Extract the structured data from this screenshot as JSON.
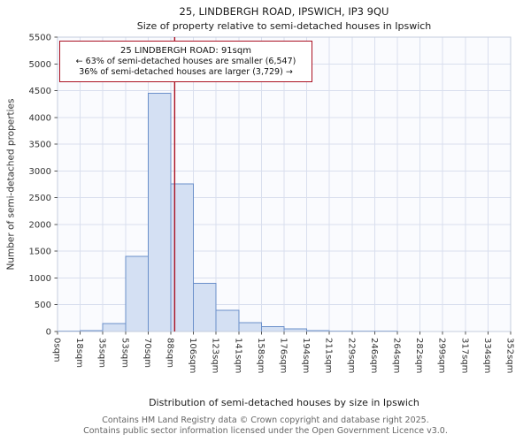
{
  "annotation": {
    "line1": "25 LINDBERGH ROAD: 91sqm",
    "line2": "← 63% of semi-detached houses are smaller (6,547)",
    "line3": "36% of semi-detached houses are larger (3,729) →"
  },
  "footer": {
    "line1": "Contains HM Land Registry data © Crown copyright and database right 2025.",
    "line2": "Contains public sector information licensed under the Open Government Licence v3.0."
  },
  "chart_data": {
    "type": "bar",
    "title": "25, LINDBERGH ROAD, IPSWICH, IP3 9QU",
    "subtitle": "Size of property relative to semi-detached houses in Ipswich",
    "xlabel": "Distribution of semi-detached houses by size in Ipswich",
    "ylabel": "Number of semi-detached properties",
    "x_tick_labels": [
      "0sqm",
      "18sqm",
      "35sqm",
      "53sqm",
      "70sqm",
      "88sqm",
      "106sqm",
      "123sqm",
      "141sqm",
      "158sqm",
      "176sqm",
      "194sqm",
      "211sqm",
      "229sqm",
      "246sqm",
      "264sqm",
      "282sqm",
      "299sqm",
      "317sqm",
      "334sqm",
      "352sqm"
    ],
    "bin_edges_sqm": [
      0,
      18,
      35,
      53,
      70,
      88,
      106,
      123,
      141,
      158,
      176,
      194,
      211,
      229,
      246,
      264,
      282,
      299,
      317,
      334,
      352
    ],
    "values": [
      8,
      15,
      150,
      1400,
      4450,
      2760,
      900,
      400,
      165,
      90,
      50,
      20,
      10,
      8,
      5,
      3,
      0,
      0,
      0,
      0
    ],
    "ylim": [
      0,
      5500
    ],
    "y_ticks": [
      0,
      500,
      1000,
      1500,
      2000,
      2500,
      3000,
      3500,
      4000,
      4500,
      5000,
      5500
    ],
    "x_max_sqm": 352,
    "marker": {
      "value_sqm": 91,
      "pct_smaller": 63,
      "count_smaller": "6,547",
      "pct_larger": 36,
      "count_larger": "3,729"
    },
    "grid": true,
    "legend": "none",
    "colors": {
      "bar_fill": "#d4e0f3",
      "bar_stroke": "#6a8fca",
      "marker_line": "#aa1122",
      "grid": "#d9dfee",
      "plot_border": "#c4cddd",
      "plot_bg": "#fafbfe",
      "tick_text": "#333333"
    }
  }
}
